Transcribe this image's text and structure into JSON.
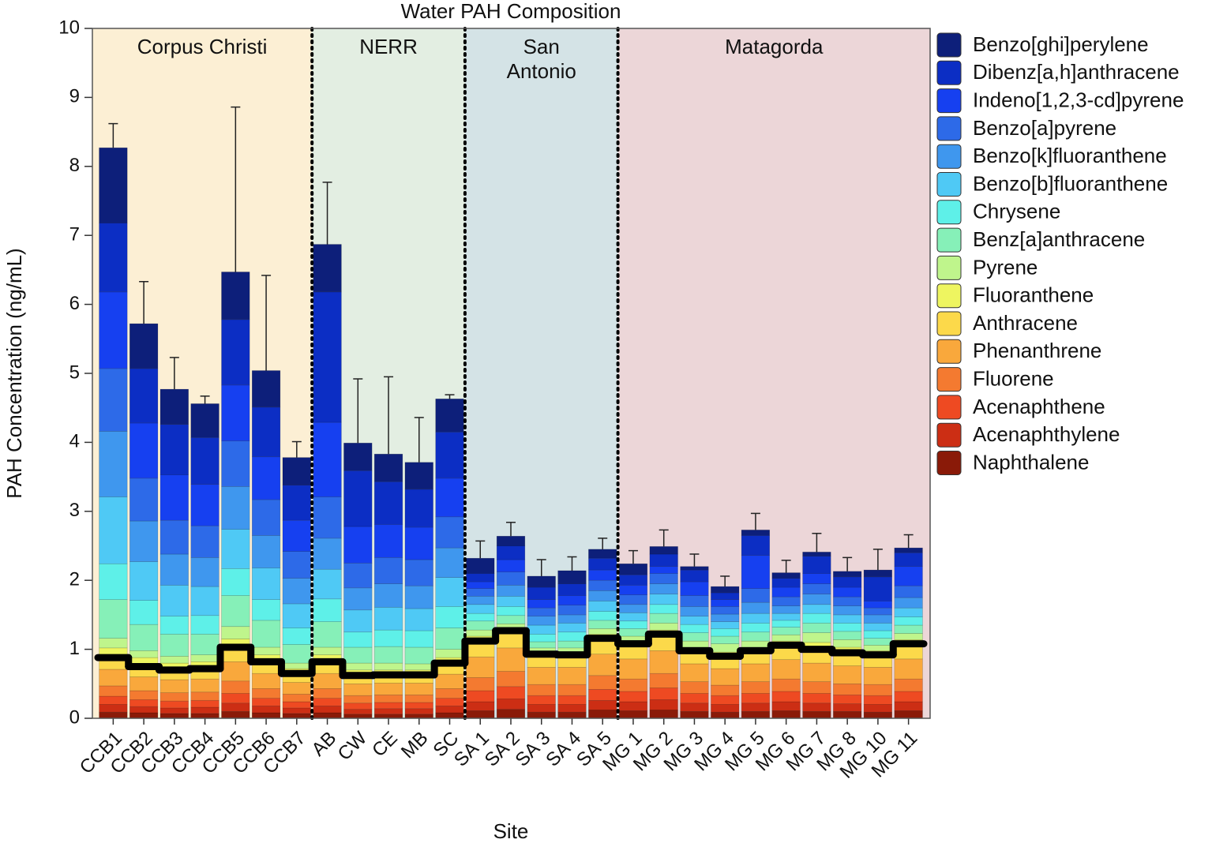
{
  "chart_data": {
    "type": "stacked_bar",
    "title": "Water PAH Composition",
    "x_label": "Site",
    "y_label": "PAH Concentration (ng/mL)",
    "ylim": [
      0,
      10
    ],
    "yticks": [
      0,
      1,
      2,
      3,
      4,
      5,
      6,
      7,
      8,
      9,
      10
    ],
    "groups": [
      {
        "name": "Corpus Christi",
        "color": "#fcefd4",
        "categories": [
          "CCB1",
          "CCB2",
          "CCB3",
          "CCB4",
          "CCB5",
          "CCB6",
          "CCB7"
        ]
      },
      {
        "name": "NERR",
        "color": "#e3eee2",
        "categories": [
          "AB",
          "CW",
          "CE",
          "MB",
          "SC"
        ]
      },
      {
        "name": "San Antonio",
        "color": "#d4e3e6",
        "categories": [
          "SA 1",
          "SA 2",
          "SA 3",
          "SA 4",
          "SA 5"
        ]
      },
      {
        "name": "Matagorda",
        "color": "#ecd6d8",
        "categories": [
          "MG 1",
          "MG 2",
          "MG 3",
          "MG 4",
          "MG 5",
          "MG 6",
          "MG 7",
          "MG 8",
          "MG 10",
          "MG 11"
        ]
      }
    ],
    "series": [
      {
        "name": "Benzo[ghi]perylene",
        "color": "#0d1f7a",
        "values": [
          1.09,
          0.65,
          0.51,
          0.49,
          0.69,
          0.53,
          0.4,
          0.69,
          0.4,
          0.4,
          0.39,
          0.48,
          0.22,
          0.14,
          0.16,
          0.19,
          0.13,
          0.16,
          0.11,
          0.05,
          0.09,
          0.08,
          0.08,
          0.06,
          0.08,
          0.1,
          0.07
        ]
      },
      {
        "name": "Dibenz[a,h]anthracene",
        "color": "#0c2ec4",
        "values": [
          1.0,
          0.79,
          0.73,
          0.68,
          0.95,
          0.72,
          0.51,
          1.89,
          0.81,
          0.62,
          0.55,
          0.67,
          0.12,
          0.2,
          0.18,
          0.17,
          0.17,
          0.15,
          0.18,
          0.17,
          0.1,
          0.29,
          0.13,
          0.25,
          0.15,
          0.35,
          0.2
        ]
      },
      {
        "name": "Indeno[1,2,3-cd]pyrene",
        "color": "#1640f0",
        "values": [
          1.11,
          0.8,
          0.66,
          0.6,
          0.81,
          0.62,
          0.45,
          1.08,
          0.53,
          0.48,
          0.47,
          0.56,
          0.1,
          0.18,
          0.12,
          0.14,
          0.15,
          0.14,
          0.1,
          0.2,
          0.1,
          0.48,
          0.14,
          0.15,
          0.14,
          0.1,
          0.28
        ]
      },
      {
        "name": "Benzo[a]pyrene",
        "color": "#2d6ae8",
        "values": [
          0.91,
          0.62,
          0.49,
          0.46,
          0.66,
          0.52,
          0.39,
          0.6,
          0.36,
          0.38,
          0.38,
          0.45,
          0.11,
          0.19,
          0.12,
          0.14,
          0.15,
          0.14,
          0.15,
          0.16,
          0.11,
          0.2,
          0.13,
          0.15,
          0.13,
          0.1,
          0.17
        ]
      },
      {
        "name": "Benzo[k]fluoranthene",
        "color": "#3f97ee",
        "values": [
          0.95,
          0.59,
          0.45,
          0.42,
          0.62,
          0.47,
          0.37,
          0.45,
          0.32,
          0.34,
          0.33,
          0.43,
          0.12,
          0.16,
          0.13,
          0.12,
          0.15,
          0.12,
          0.15,
          0.14,
          0.11,
          0.16,
          0.11,
          0.15,
          0.13,
          0.12,
          0.15
        ]
      },
      {
        "name": "Benzo[b]fluoranthene",
        "color": "#4fc9f5",
        "values": [
          0.97,
          0.56,
          0.45,
          0.42,
          0.57,
          0.46,
          0.35,
          0.43,
          0.32,
          0.33,
          0.32,
          0.42,
          0.13,
          0.15,
          0.13,
          0.13,
          0.15,
          0.12,
          0.15,
          0.12,
          0.1,
          0.14,
          0.1,
          0.13,
          0.12,
          0.11,
          0.13
        ]
      },
      {
        "name": "Chrysene",
        "color": "#5ef0e8",
        "values": [
          0.52,
          0.35,
          0.26,
          0.27,
          0.39,
          0.3,
          0.24,
          0.33,
          0.22,
          0.24,
          0.24,
          0.31,
          0.11,
          0.13,
          0.11,
          0.13,
          0.13,
          0.11,
          0.13,
          0.12,
          0.11,
          0.13,
          0.1,
          0.14,
          0.12,
          0.11,
          0.12
        ]
      },
      {
        "name": "Benz[a]anthracene",
        "color": "#86f0b8",
        "values": [
          0.56,
          0.38,
          0.32,
          0.3,
          0.45,
          0.39,
          0.27,
          0.37,
          0.23,
          0.24,
          0.24,
          0.31,
          0.13,
          0.12,
          0.09,
          0.1,
          0.12,
          0.11,
          0.14,
          0.12,
          0.11,
          0.13,
          0.11,
          0.14,
          0.12,
          0.1,
          0.12
        ]
      },
      {
        "name": "Pyrene",
        "color": "#bff58c",
        "values": [
          0.14,
          0.1,
          0.1,
          0.1,
          0.18,
          0.11,
          0.08,
          0.11,
          0.1,
          0.1,
          0.09,
          0.12,
          0.09,
          0.06,
          0.05,
          0.06,
          0.08,
          0.06,
          0.1,
          0.09,
          0.12,
          0.09,
          0.09,
          0.14,
          0.11,
          0.08,
          0.09
        ]
      },
      {
        "name": "Fluoranthene",
        "color": "#eef560",
        "values": [
          0.14,
          0.13,
          0.1,
          0.1,
          0.12,
          0.1,
          0.07,
          0.1,
          0.08,
          0.07,
          0.07,
          0.08,
          0.07,
          0.04,
          0.04,
          0.04,
          0.06,
          0.05,
          0.06,
          0.05,
          0.06,
          0.05,
          0.06,
          0.1,
          0.08,
          0.06,
          0.06
        ]
      },
      {
        "name": "Anthracene",
        "color": "#fcd94a",
        "values": [
          0.17,
          0.15,
          0.14,
          0.15,
          0.21,
          0.17,
          0.13,
          0.17,
          0.12,
          0.12,
          0.12,
          0.16,
          0.23,
          0.25,
          0.19,
          0.18,
          0.23,
          0.22,
          0.24,
          0.19,
          0.18,
          0.19,
          0.21,
          0.2,
          0.19,
          0.18,
          0.22
        ]
      },
      {
        "name": "Phenanthrene",
        "color": "#f9a83c",
        "values": [
          0.24,
          0.2,
          0.19,
          0.19,
          0.28,
          0.22,
          0.17,
          0.22,
          0.17,
          0.17,
          0.17,
          0.21,
          0.3,
          0.34,
          0.25,
          0.25,
          0.31,
          0.29,
          0.33,
          0.26,
          0.24,
          0.26,
          0.28,
          0.27,
          0.26,
          0.25,
          0.29
        ]
      },
      {
        "name": "Fluorene",
        "color": "#f47a30",
        "values": [
          0.15,
          0.13,
          0.12,
          0.12,
          0.18,
          0.14,
          0.11,
          0.14,
          0.11,
          0.11,
          0.11,
          0.14,
          0.19,
          0.22,
          0.16,
          0.16,
          0.2,
          0.18,
          0.21,
          0.17,
          0.15,
          0.17,
          0.18,
          0.17,
          0.16,
          0.16,
          0.18
        ]
      },
      {
        "name": "Acenaphthene",
        "color": "#ee4a22",
        "values": [
          0.12,
          0.1,
          0.1,
          0.1,
          0.14,
          0.11,
          0.09,
          0.11,
          0.09,
          0.09,
          0.09,
          0.11,
          0.16,
          0.18,
          0.13,
          0.13,
          0.16,
          0.15,
          0.17,
          0.14,
          0.13,
          0.14,
          0.15,
          0.14,
          0.13,
          0.13,
          0.15
        ]
      },
      {
        "name": "Acenaphthylene",
        "color": "#cc2e14",
        "values": [
          0.11,
          0.09,
          0.08,
          0.09,
          0.12,
          0.1,
          0.08,
          0.1,
          0.07,
          0.08,
          0.08,
          0.1,
          0.13,
          0.15,
          0.11,
          0.11,
          0.14,
          0.13,
          0.15,
          0.12,
          0.11,
          0.12,
          0.13,
          0.12,
          0.11,
          0.11,
          0.13
        ]
      },
      {
        "name": "Naphthalene",
        "color": "#8a1a08",
        "values": [
          0.09,
          0.08,
          0.07,
          0.07,
          0.1,
          0.08,
          0.07,
          0.08,
          0.06,
          0.06,
          0.06,
          0.08,
          0.11,
          0.13,
          0.09,
          0.09,
          0.12,
          0.11,
          0.12,
          0.1,
          0.09,
          0.1,
          0.11,
          0.1,
          0.1,
          0.09,
          0.11
        ]
      }
    ],
    "errors": [
      0.35,
      0.61,
      0.46,
      0.11,
      2.39,
      1.38,
      0.23,
      0.9,
      0.93,
      1.12,
      0.65,
      0.06,
      0.25,
      0.2,
      0.24,
      0.2,
      0.16,
      0.19,
      0.24,
      0.18,
      0.15,
      0.24,
      0.18,
      0.27,
      0.2,
      0.3,
      0.19
    ],
    "legend": "right"
  }
}
